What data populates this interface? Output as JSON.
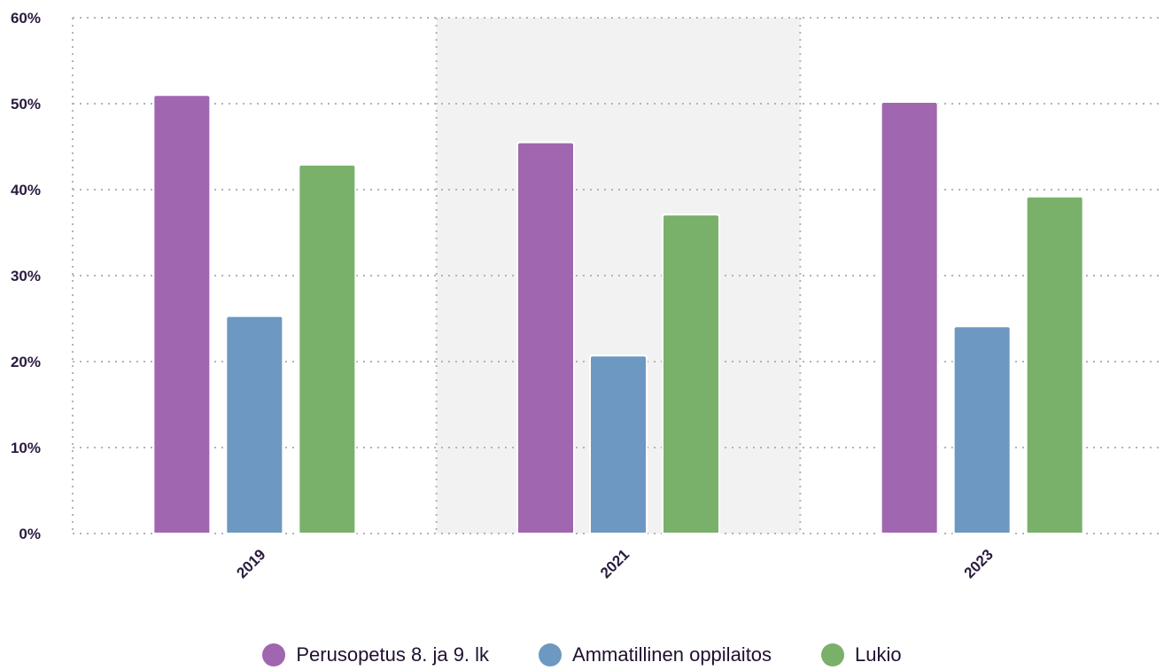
{
  "chart_data": {
    "type": "bar",
    "categories": [
      "2019",
      "2021",
      "2023"
    ],
    "series": [
      {
        "name": "Perusopetus 8. ja 9. lk",
        "values": [
          51.0,
          45.5,
          50.2
        ],
        "color": "#a066b0"
      },
      {
        "name": "Ammatillinen oppilaitos",
        "values": [
          25.3,
          20.7,
          24.1
        ],
        "color": "#6c98c2"
      },
      {
        "name": "Lukio",
        "values": [
          42.9,
          37.1,
          39.2
        ],
        "color": "#79b06a"
      }
    ],
    "y_ticks": [
      "0%",
      "10%",
      "20%",
      "30%",
      "40%",
      "50%",
      "60%"
    ],
    "ylim": [
      0,
      60
    ],
    "highlighted_category": "2021",
    "highlight_color": "#f2f2f2",
    "grid": "dotted",
    "legend_position": "bottom-center"
  }
}
